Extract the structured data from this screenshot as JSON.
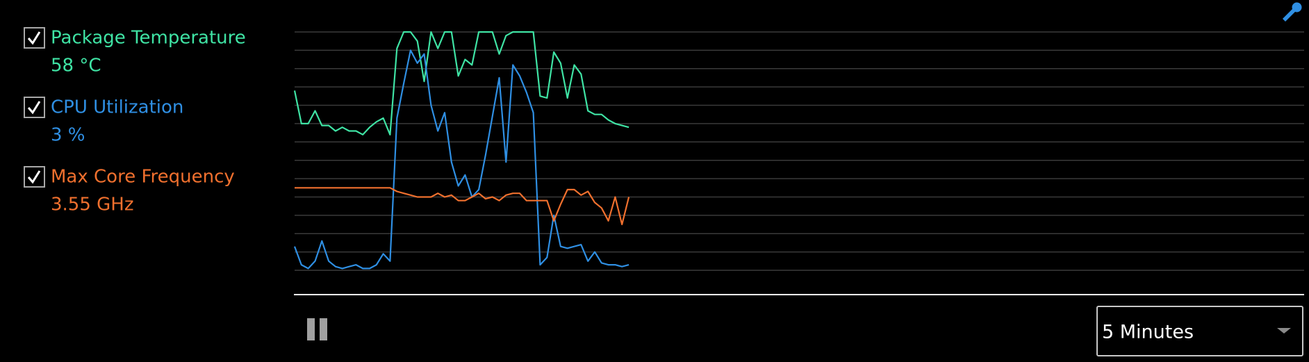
{
  "chart_data": {
    "type": "line",
    "ylim": [
      0,
      13
    ],
    "yticks": [
      0,
      1,
      2,
      3,
      4,
      5,
      6,
      7,
      8,
      9,
      10,
      11,
      12,
      13
    ],
    "grid": true,
    "xlim": [
      0,
      148
    ],
    "series": [
      {
        "name": "Package Temperature",
        "reading": "58 °C",
        "checked": true,
        "color": "#3fe3a4",
        "values": [
          9.8,
          8.0,
          8.0,
          8.7,
          7.9,
          7.9,
          7.6,
          7.8,
          7.6,
          7.6,
          7.4,
          7.8,
          8.1,
          8.3,
          7.4,
          12.1,
          13,
          13,
          12.5,
          10.3,
          13,
          12.1,
          13,
          13,
          10.6,
          11.5,
          11.2,
          13,
          13,
          13,
          11.8,
          12.8,
          13,
          13,
          13,
          13,
          9.5,
          9.4,
          11.9,
          11.3,
          9.4,
          11.2,
          10.7,
          8.7,
          8.5,
          8.5,
          8.2,
          8.0,
          7.9,
          7.8
        ]
      },
      {
        "name": "CPU Utilization",
        "reading": "3 %",
        "checked": true,
        "color": "#2f8fe3",
        "values": [
          1.3,
          0.3,
          0.1,
          0.5,
          1.6,
          0.5,
          0.2,
          0.1,
          0.2,
          0.3,
          0.1,
          0.1,
          0.3,
          0.9,
          0.5,
          8.3,
          10.2,
          12,
          11.3,
          11.8,
          9,
          7.6,
          8.6,
          5.9,
          4.6,
          5.2,
          4,
          4.4,
          6.3,
          8.4,
          10.5,
          5.9,
          11.2,
          10.6,
          9.7,
          8.6,
          0.3,
          0.7,
          3,
          1.3,
          1.2,
          1.3,
          1.4,
          0.5,
          1,
          0.4,
          0.3,
          0.3,
          0.2,
          0.3
        ]
      },
      {
        "name": "Max Core Frequency",
        "reading": "3.55 GHz",
        "checked": true,
        "color": "#f0702e",
        "values": [
          4.5,
          4.5,
          4.5,
          4.5,
          4.5,
          4.5,
          4.5,
          4.5,
          4.5,
          4.5,
          4.5,
          4.5,
          4.5,
          4.5,
          4.5,
          4.3,
          4.2,
          4.1,
          4,
          4,
          4,
          4.2,
          4,
          4.1,
          3.8,
          3.8,
          4,
          4.2,
          3.9,
          4,
          3.8,
          4.1,
          4.2,
          4.2,
          3.8,
          3.8,
          3.8,
          3.8,
          2.7,
          3.6,
          4.4,
          4.4,
          4.1,
          4.3,
          3.7,
          3.4,
          2.7,
          4,
          2.5,
          4
        ]
      }
    ]
  },
  "controls": {
    "time_range": "5 Minutes"
  }
}
